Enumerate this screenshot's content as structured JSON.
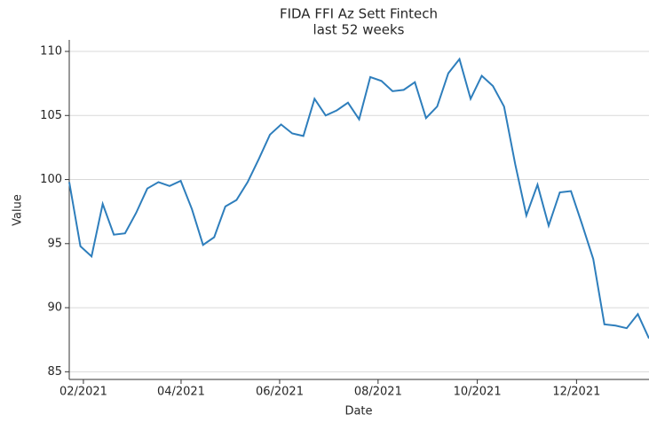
{
  "chart_data": {
    "type": "line",
    "title": "FIDA FFI Az Sett Fintech",
    "subtitle": "last 52 weeks",
    "x_label": "Date",
    "y_label": "Value",
    "x": [
      0,
      1,
      2,
      3,
      4,
      5,
      6,
      7,
      8,
      9,
      10,
      11,
      12,
      13,
      14,
      15,
      16,
      17,
      18,
      19,
      20,
      21,
      22,
      23,
      24,
      25,
      26,
      27,
      28,
      29,
      30,
      31,
      32,
      33,
      34,
      35,
      36,
      37,
      38,
      39,
      40,
      41,
      42,
      43,
      44,
      45,
      46,
      47,
      48,
      49,
      50,
      51,
      52
    ],
    "series": [
      {
        "name": "Value",
        "color": "#2e7ebc",
        "values": [
          99.8,
          94.8,
          94.0,
          98.1,
          95.7,
          95.8,
          97.4,
          99.3,
          99.8,
          99.5,
          99.9,
          97.7,
          94.9,
          95.5,
          97.9,
          98.4,
          99.8,
          101.6,
          103.5,
          104.3,
          103.6,
          103.4,
          106.3,
          105.0,
          105.4,
          106.0,
          104.7,
          108.0,
          107.7,
          106.9,
          107.0,
          107.6,
          104.8,
          105.7,
          108.3,
          109.4,
          106.3,
          108.1,
          107.3,
          105.7,
          101.2,
          97.2,
          99.6,
          96.4,
          99.0,
          99.1,
          96.5,
          93.8,
          88.7,
          88.6,
          88.4,
          89.5,
          87.6
        ]
      }
    ],
    "xlim": [
      0,
      52
    ],
    "xticks": [
      {
        "value": 1.27,
        "label": "02/2021"
      },
      {
        "value": 10.03,
        "label": "04/2021"
      },
      {
        "value": 18.87,
        "label": "06/2021"
      },
      {
        "value": 27.7,
        "label": "08/2021"
      },
      {
        "value": 36.6,
        "label": "10/2021"
      },
      {
        "value": 45.5,
        "label": "12/2021"
      }
    ],
    "ylim": [
      84.4,
      110.9
    ],
    "yticks": [
      85,
      90,
      95,
      100,
      105,
      110
    ],
    "grid": true
  }
}
